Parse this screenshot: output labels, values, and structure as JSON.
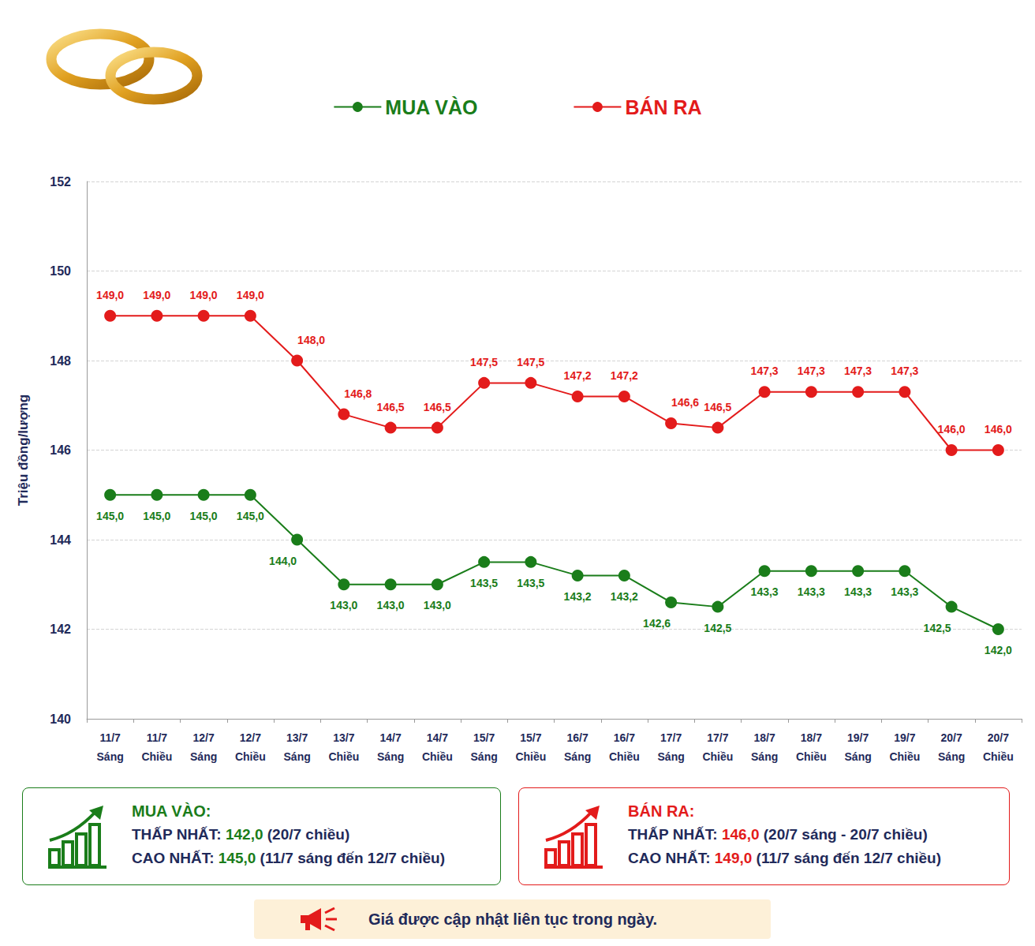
{
  "chart_data": {
    "type": "line",
    "y_label": "Triệu đồng/lượng",
    "categories": [
      "11/7 Sáng",
      "11/7 Chiều",
      "12/7 Sáng",
      "12/7 Chiều",
      "13/7 Sáng",
      "13/7 Chiều",
      "14/7 Sáng",
      "14/7 Chiều",
      "15/7 Sáng",
      "15/7 Chiều",
      "16/7 Sáng",
      "16/7 Chiều",
      "17/7 Sáng",
      "17/7 Chiều",
      "18/7 Sáng",
      "18/7 Chiều",
      "19/7 Sáng",
      "19/7 Chiều",
      "20/7 Sáng",
      "20/7 Chiều"
    ],
    "series": [
      {
        "name": "MUA VÀO",
        "color": "#1a7d1a",
        "values": [
          145.0,
          145.0,
          145.0,
          145.0,
          144.0,
          143.0,
          143.0,
          143.0,
          143.5,
          143.5,
          143.2,
          143.2,
          142.6,
          142.5,
          143.3,
          143.3,
          143.3,
          143.3,
          142.5,
          142.0
        ],
        "value_labels": [
          "145,0",
          "145,0",
          "145,0",
          "145,0",
          "144,0",
          "143,0",
          "143,0",
          "143,0",
          "143,5",
          "143,5",
          "143,2",
          "143,2",
          "142,6",
          "142,5",
          "143,3",
          "143,3",
          "143,3",
          "143,3",
          "142,5",
          "142,0"
        ]
      },
      {
        "name": "BÁN RA",
        "color": "#e31b1b",
        "values": [
          149.0,
          149.0,
          149.0,
          149.0,
          148.0,
          146.8,
          146.5,
          146.5,
          147.5,
          147.5,
          147.2,
          147.2,
          146.6,
          146.5,
          147.3,
          147.3,
          147.3,
          147.3,
          146.0,
          146.0
        ],
        "value_labels": [
          "149,0",
          "149,0",
          "149,0",
          "149,0",
          "148,0",
          "146,8",
          "146,5",
          "146,5",
          "147,5",
          "147,5",
          "147,2",
          "147,2",
          "146,6",
          "146,5",
          "147,3",
          "147,3",
          "147,3",
          "147,3",
          "146,0",
          "146,0"
        ]
      }
    ],
    "ylim": [
      140,
      152
    ],
    "yticks": [
      140,
      142,
      144,
      146,
      148,
      150,
      152
    ],
    "grid": true,
    "legend": "top",
    "data_labels": true,
    "marker": "circle",
    "line_style": "solid"
  },
  "summary": [
    {
      "title": "MUA VÀO:",
      "rows": [
        {
          "label": "THẤP NHẤT:",
          "value": "142,0",
          "note": "(20/7 chiều)"
        },
        {
          "label": "CAO NHẤT:",
          "value": "145,0",
          "note": "(11/7 sáng đến 12/7 chiều)"
        }
      ]
    },
    {
      "title": "BÁN RA:",
      "rows": [
        {
          "label": "THẤP NHẤT:",
          "value": "146,0",
          "note": "(20/7 sáng - 20/7 chiều)"
        },
        {
          "label": "CAO NHẤT:",
          "value": "149,0",
          "note": "(11/7 sáng đến 12/7 chiều)"
        }
      ]
    }
  ],
  "footer": "Giá được cập nhật liên tục trong ngày."
}
